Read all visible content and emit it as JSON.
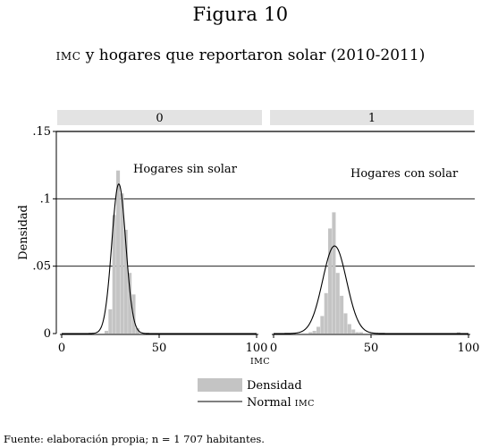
{
  "figure": {
    "title": "Figura 10",
    "subtitle_abbr": "IMC",
    "subtitle_rest": " y hogares que reportaron solar (2010-2011)",
    "source": "Fuente: elaboración propia; n = 1 707 habitantes."
  },
  "chart_data": {
    "type": "bar",
    "panels": [
      {
        "name": "0",
        "annotation": "Hogares sin solar",
        "bins": [
          {
            "x0": 22,
            "x1": 24,
            "density": 0.002
          },
          {
            "x0": 24,
            "x1": 26,
            "density": 0.018
          },
          {
            "x0": 26,
            "x1": 28,
            "density": 0.088
          },
          {
            "x0": 28,
            "x1": 30,
            "density": 0.121
          },
          {
            "x0": 30,
            "x1": 32,
            "density": 0.104
          },
          {
            "x0": 32,
            "x1": 34,
            "density": 0.077
          },
          {
            "x0": 34,
            "x1": 36,
            "density": 0.045
          },
          {
            "x0": 36,
            "x1": 38,
            "density": 0.029
          },
          {
            "x0": 38,
            "x1": 40,
            "density": 0.004
          }
        ],
        "normal": {
          "mean": 29.3,
          "peak_density": 0.111
        }
      },
      {
        "name": "1",
        "annotation": "Hogares con solar",
        "bins": [
          {
            "x0": 18,
            "x1": 20,
            "density": 0.001
          },
          {
            "x0": 20,
            "x1": 22,
            "density": 0.002
          },
          {
            "x0": 22,
            "x1": 24,
            "density": 0.005
          },
          {
            "x0": 24,
            "x1": 26,
            "density": 0.013
          },
          {
            "x0": 26,
            "x1": 28,
            "density": 0.03
          },
          {
            "x0": 28,
            "x1": 30,
            "density": 0.078
          },
          {
            "x0": 30,
            "x1": 32,
            "density": 0.09
          },
          {
            "x0": 32,
            "x1": 34,
            "density": 0.045
          },
          {
            "x0": 34,
            "x1": 36,
            "density": 0.028
          },
          {
            "x0": 36,
            "x1": 38,
            "density": 0.015
          },
          {
            "x0": 38,
            "x1": 40,
            "density": 0.007
          },
          {
            "x0": 40,
            "x1": 42,
            "density": 0.003
          },
          {
            "x0": 42,
            "x1": 44,
            "density": 0.001
          },
          {
            "x0": 44,
            "x1": 46,
            "density": 0.001
          },
          {
            "x0": 94,
            "x1": 96,
            "density": 0.001
          }
        ],
        "normal": {
          "mean": 31.3,
          "peak_density": 0.065
        }
      }
    ],
    "xlim": [
      0,
      100
    ],
    "xticks": [
      0,
      50,
      100
    ],
    "ylim": [
      0,
      0.15
    ],
    "yticks": [
      0,
      0.05,
      0.1,
      0.15
    ],
    "ytick_labels": [
      "0",
      ".05",
      ".1",
      ".15"
    ],
    "xlabel": "IMC",
    "ylabel": "Densidad",
    "grid": true,
    "legend": {
      "position": "bottom",
      "items": [
        {
          "label": "Densidad",
          "kind": "bar"
        },
        {
          "label_main": "Normal ",
          "label_abbr": "IMC",
          "kind": "line"
        }
      ]
    },
    "colors": {
      "bar": "#c4c4c4",
      "line": "#000000",
      "strip": "#e3e3e3"
    }
  }
}
